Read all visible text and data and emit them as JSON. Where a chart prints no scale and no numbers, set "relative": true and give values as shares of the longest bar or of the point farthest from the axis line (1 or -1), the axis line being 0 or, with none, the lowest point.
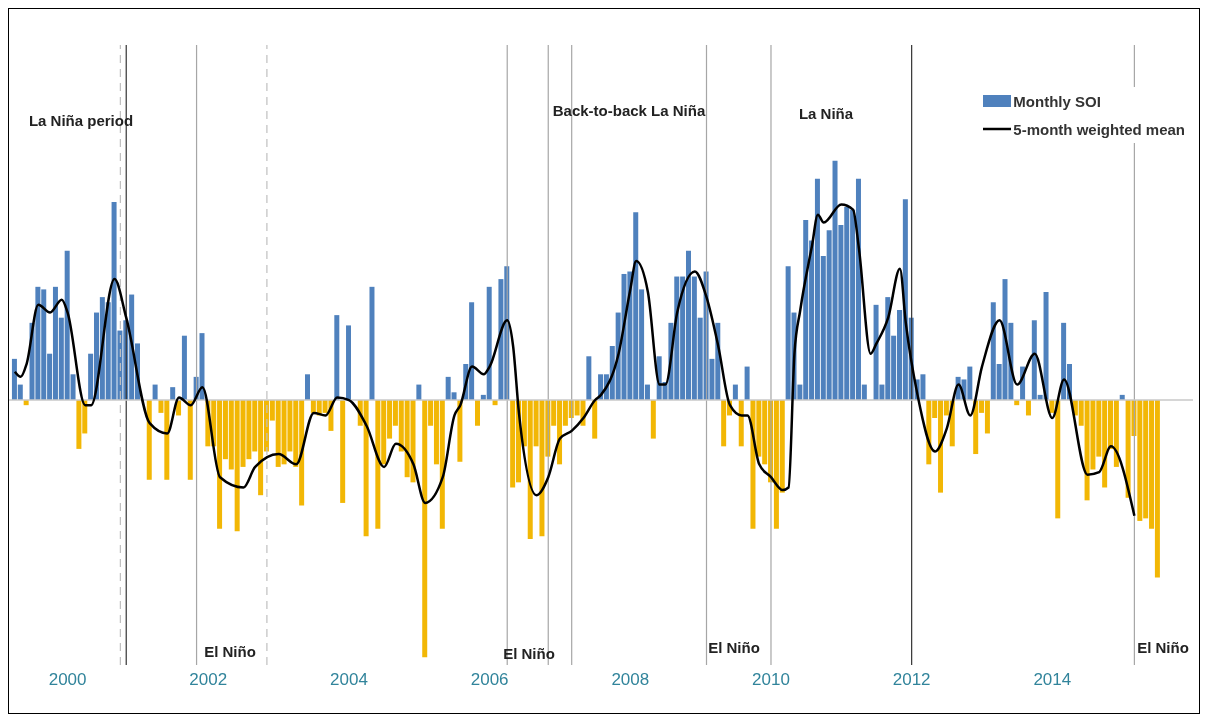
{
  "chart_data": {
    "type": "bar",
    "relative": true,
    "legend": "top right",
    "x": [
      "1999-04",
      "1999-05",
      "1999-06",
      "1999-07",
      "1999-08",
      "1999-09",
      "1999-10",
      "1999-11",
      "1999-12",
      "2000-01",
      "2000-02",
      "2000-03",
      "2000-04",
      "2000-05",
      "2000-06",
      "2000-07",
      "2000-08",
      "2000-09",
      "2000-10",
      "2000-11",
      "2000-12",
      "2001-01",
      "2001-02",
      "2001-03",
      "2001-04",
      "2001-05",
      "2001-06",
      "2001-07",
      "2001-08",
      "2001-09",
      "2001-10",
      "2001-11",
      "2001-12",
      "2002-01",
      "2002-02",
      "2002-03",
      "2002-04",
      "2002-05",
      "2002-06",
      "2002-07",
      "2002-08",
      "2002-09",
      "2002-10",
      "2002-11",
      "2002-12",
      "2003-01",
      "2003-02",
      "2003-03",
      "2003-04",
      "2003-05",
      "2003-06",
      "2003-07",
      "2003-08",
      "2003-09",
      "2003-10",
      "2003-11",
      "2003-12",
      "2004-01",
      "2004-02",
      "2004-03",
      "2004-04",
      "2004-05",
      "2004-06",
      "2004-07",
      "2004-08",
      "2004-09",
      "2004-10",
      "2004-11",
      "2004-12",
      "2005-01",
      "2005-02",
      "2005-03",
      "2005-04",
      "2005-05",
      "2005-06",
      "2005-07",
      "2005-08",
      "2005-09",
      "2005-10",
      "2005-11",
      "2005-12",
      "2006-01",
      "2006-02",
      "2006-03",
      "2006-04",
      "2006-05",
      "2006-06",
      "2006-07",
      "2006-08",
      "2006-09",
      "2006-10",
      "2006-11",
      "2006-12",
      "2007-01",
      "2007-02",
      "2007-03",
      "2007-04",
      "2007-05",
      "2007-06",
      "2007-07",
      "2007-08",
      "2007-09",
      "2007-10",
      "2007-11",
      "2007-12",
      "2008-01",
      "2008-02",
      "2008-03",
      "2008-04",
      "2008-05",
      "2008-06",
      "2008-07",
      "2008-08",
      "2008-09",
      "2008-10",
      "2008-11",
      "2008-12",
      "2009-01",
      "2009-02",
      "2009-03",
      "2009-04",
      "2009-05",
      "2009-06",
      "2009-07",
      "2009-08",
      "2009-09",
      "2009-10",
      "2009-11",
      "2009-12",
      "2010-01",
      "2010-02",
      "2010-03",
      "2010-04",
      "2010-05",
      "2010-06",
      "2010-07",
      "2010-08",
      "2010-09",
      "2010-10",
      "2010-11",
      "2010-12",
      "2011-01",
      "2011-02",
      "2011-03",
      "2011-04",
      "2011-05",
      "2011-06",
      "2011-07",
      "2011-08",
      "2011-09",
      "2011-10",
      "2011-11",
      "2011-12",
      "2012-01",
      "2012-02",
      "2012-03",
      "2012-04",
      "2012-05",
      "2012-06",
      "2012-07",
      "2012-08",
      "2012-09",
      "2012-10",
      "2012-11",
      "2012-12",
      "2013-01",
      "2013-02",
      "2013-03",
      "2013-04",
      "2013-05",
      "2013-06",
      "2013-07",
      "2013-08",
      "2013-09",
      "2013-10",
      "2013-11",
      "2013-12",
      "2014-01",
      "2014-02",
      "2014-03",
      "2014-04",
      "2014-05",
      "2014-06",
      "2014-07",
      "2014-08",
      "2014-09",
      "2014-10",
      "2014-11",
      "2014-12",
      "2015-01",
      "2015-02",
      "2015-03",
      "2015-04",
      "2015-05",
      "2015-06",
      "2015-07"
    ],
    "xlim": [
      "1999-03",
      "2016-01"
    ],
    "xticks": [
      "2000",
      "2002",
      "2004",
      "2006",
      "2008",
      "2010",
      "2012",
      "2014"
    ],
    "series": [
      {
        "name": "Monthly SOI",
        "type": "bar",
        "color": "#4f81bd",
        "values": [
          0.16,
          0.06,
          -0.02,
          0.3,
          0.44,
          0.43,
          0.18,
          0.44,
          0.32,
          0.58,
          0.1,
          -0.19,
          -0.13,
          0.18,
          0.34,
          0.4,
          0.38,
          0.77,
          0.27,
          0.31,
          0.41,
          0.22,
          null,
          -0.31,
          0.06,
          -0.05,
          -0.31,
          0.05,
          -0.06,
          0.25,
          -0.31,
          0.09,
          0.26,
          -0.18,
          -0.18,
          -0.5,
          -0.23,
          -0.27,
          -0.51,
          -0.26,
          -0.23,
          -0.2,
          -0.37,
          -0.2,
          -0.08,
          -0.26,
          -0.25,
          -0.2,
          -0.26,
          -0.41,
          0.1,
          -0.05,
          -0.06,
          -0.05,
          -0.12,
          0.33,
          -0.4,
          0.29,
          null,
          -0.1,
          -0.53,
          0.44,
          -0.5,
          -0.25,
          -0.15,
          -0.1,
          -0.2,
          -0.3,
          -0.32,
          0.06,
          -1,
          -0.1,
          -0.25,
          -0.5,
          0.09,
          0.03,
          -0.24,
          0.14,
          0.38,
          -0.1,
          0.02,
          0.44,
          -0.02,
          0.47,
          0.52,
          -0.34,
          -0.32,
          -0.18,
          -0.54,
          -0.18,
          -0.53,
          -0.22,
          -0.1,
          -0.25,
          -0.1,
          -0.07,
          -0.06,
          -0.1,
          0.17,
          -0.15,
          0.1,
          0.1,
          0.21,
          0.34,
          0.49,
          0.5,
          0.73,
          0.43,
          0.06,
          -0.15,
          0.17,
          0.07,
          0.3,
          0.48,
          0.48,
          0.58,
          0.48,
          0.32,
          0.5,
          0.16,
          0.3,
          -0.18,
          -0.06,
          0.06,
          -0.18,
          0.13,
          -0.5,
          -0.22,
          -0.25,
          -0.32,
          -0.5,
          -0.36,
          0.52,
          0.34,
          0.06,
          0.7,
          0.62,
          0.86,
          0.56,
          0.66,
          0.93,
          0.68,
          0.75,
          0.74,
          0.86,
          0.06,
          0.0,
          0.37,
          0.06,
          0.4,
          0.25,
          0.35,
          0.78,
          0.32,
          0.08,
          0.1,
          -0.25,
          -0.07,
          -0.36,
          -0.06,
          -0.18,
          0.09,
          0.08,
          0.13,
          -0.21,
          -0.05,
          -0.13,
          0.38,
          0.14,
          0.47,
          0.3,
          -0.02,
          0.13,
          -0.06,
          0.31,
          0.02,
          0.42,
          -0.05,
          -0.46,
          0.3,
          0.14,
          -0.06,
          -0.1,
          -0.39,
          -0.27,
          -0.22,
          -0.34,
          -0.19,
          -0.26,
          0.02,
          -0.38,
          -0.14,
          -0.47,
          -0.46,
          -0.5,
          -0.69
        ],
        "colors": [
          "#4f81bd",
          "#4f81bd",
          "#f2b705",
          "#4f81bd",
          "#4f81bd",
          "#4f81bd",
          "#4f81bd",
          "#4f81bd",
          "#4f81bd",
          "#4f81bd",
          "#4f81bd",
          "#f2b705",
          "#f2b705",
          "#4f81bd",
          "#4f81bd",
          "#4f81bd",
          "#4f81bd",
          "#4f81bd",
          "#4f81bd",
          "#4f81bd",
          "#4f81bd",
          "#4f81bd",
          "#f2b705",
          "#f2b705",
          "#4f81bd",
          "#f2b705",
          "#f2b705",
          "#4f81bd",
          "#f2b705",
          "#4f81bd",
          "#f2b705",
          "#4f81bd",
          "#4f81bd",
          "#f2b705",
          "#f2b705",
          "#f2b705",
          "#f2b705",
          "#f2b705",
          "#f2b705",
          "#f2b705",
          "#f2b705",
          "#f2b705",
          "#f2b705",
          "#f2b705",
          "#f2b705",
          "#f2b705",
          "#f2b705",
          "#f2b705",
          "#f2b705",
          "#f2b705",
          "#4f81bd",
          "#f2b705",
          "#f2b705",
          "#f2b705",
          "#f2b705",
          "#4f81bd",
          "#f2b705",
          "#4f81bd",
          "#f2b705",
          "#f2b705",
          "#f2b705",
          "#4f81bd",
          "#f2b705",
          "#f2b705",
          "#f2b705",
          "#f2b705",
          "#f2b705",
          "#f2b705",
          "#f2b705",
          "#4f81bd",
          "#f2b705",
          "#f2b705",
          "#f2b705",
          "#f2b705",
          "#4f81bd",
          "#4f81bd",
          "#f2b705",
          "#4f81bd",
          "#4f81bd",
          "#f2b705",
          "#4f81bd",
          "#4f81bd",
          "#f2b705",
          "#4f81bd",
          "#4f81bd",
          "#f2b705",
          "#f2b705",
          "#f2b705",
          "#f2b705",
          "#f2b705",
          "#f2b705",
          "#f2b705",
          "#f2b705",
          "#f2b705",
          "#f2b705",
          "#f2b705",
          "#f2b705",
          "#f2b705",
          "#4f81bd",
          "#f2b705",
          "#4f81bd",
          "#4f81bd",
          "#4f81bd",
          "#4f81bd",
          "#4f81bd",
          "#4f81bd",
          "#4f81bd",
          "#4f81bd",
          "#4f81bd",
          "#f2b705",
          "#4f81bd",
          "#4f81bd",
          "#4f81bd",
          "#4f81bd",
          "#4f81bd",
          "#4f81bd",
          "#4f81bd",
          "#4f81bd",
          "#4f81bd",
          "#4f81bd",
          "#4f81bd",
          "#f2b705",
          "#f2b705",
          "#4f81bd",
          "#f2b705",
          "#4f81bd",
          "#f2b705",
          "#f2b705",
          "#f2b705",
          "#f2b705",
          "#f2b705",
          "#f2b705",
          "#4f81bd",
          "#4f81bd",
          "#4f81bd",
          "#4f81bd",
          "#4f81bd",
          "#4f81bd",
          "#4f81bd",
          "#4f81bd",
          "#4f81bd",
          "#4f81bd",
          "#4f81bd",
          "#4f81bd",
          "#4f81bd",
          "#4f81bd",
          "#4f81bd",
          "#4f81bd",
          "#4f81bd",
          "#4f81bd",
          "#4f81bd",
          "#4f81bd",
          "#4f81bd",
          "#4f81bd",
          "#4f81bd",
          "#4f81bd",
          "#f2b705",
          "#f2b705",
          "#f2b705",
          "#f2b705",
          "#f2b705",
          "#4f81bd",
          "#4f81bd",
          "#4f81bd",
          "#f2b705",
          "#f2b705",
          "#f2b705",
          "#4f81bd",
          "#4f81bd",
          "#4f81bd",
          "#4f81bd",
          "#f2b705",
          "#4f81bd",
          "#f2b705",
          "#4f81bd",
          "#4f81bd",
          "#4f81bd",
          "#f2b705",
          "#f2b705",
          "#4f81bd",
          "#4f81bd",
          "#f2b705",
          "#f2b705",
          "#f2b705",
          "#f2b705",
          "#f2b705",
          "#f2b705",
          "#f2b705",
          "#f2b705",
          "#4f81bd",
          "#f2b705",
          "#f2b705",
          "#f2b705",
          "#f2b705",
          "#f2b705",
          "#f2b705"
        ]
      },
      {
        "name": "5-month weighted mean",
        "type": "line",
        "color": "#000000",
        "x": [
          "1999-04",
          "1999-05",
          "1999-06",
          "1999-08",
          "1999-10",
          "1999-12",
          "2000-01",
          "2000-04",
          "2000-05",
          "2000-09",
          "2000-11",
          "2001-03",
          "2001-06",
          "2001-08",
          "2001-10",
          "2001-12",
          "2002-03",
          "2002-07",
          "2002-09",
          "2003-01",
          "2003-04",
          "2003-07",
          "2003-09",
          "2003-11",
          "2004-01",
          "2004-04",
          "2004-07",
          "2004-09",
          "2004-12",
          "2005-02",
          "2005-05",
          "2005-07",
          "2005-08",
          "2005-10",
          "2005-12",
          "2006-01",
          "2006-04",
          "2006-05",
          "2006-06",
          "2006-09",
          "2006-11",
          "2007-01",
          "2007-03",
          "2007-05",
          "2007-07",
          "2007-08",
          "2007-11",
          "2008-01",
          "2008-02",
          "2008-04",
          "2008-06",
          "2008-07",
          "2008-09",
          "2008-12",
          "2009-02",
          "2009-04",
          "2009-06",
          "2009-08",
          "2009-09",
          "2009-11",
          "2010-01",
          "2010-03",
          "2010-04",
          "2010-05",
          "2010-06",
          "2010-08",
          "2010-09",
          "2010-10",
          "2011-01",
          "2011-03",
          "2011-04",
          "2011-06",
          "2011-07",
          "2011-09",
          "2011-11",
          "2011-12",
          "2012-02",
          "2012-05",
          "2012-07",
          "2012-09",
          "2012-11",
          "2013-01",
          "2013-04",
          "2013-07",
          "2013-10",
          "2014-01",
          "2014-03",
          "2014-07",
          "2014-09",
          "2014-11",
          "2015-03"
        ],
        "values": [
          0.11,
          0.09,
          0.14,
          0.37,
          0.34,
          0.39,
          0.34,
          -0.02,
          -0.02,
          0.47,
          0.32,
          -0.09,
          -0.13,
          0.01,
          -0.02,
          0.05,
          -0.3,
          -0.34,
          -0.26,
          -0.21,
          -0.25,
          -0.05,
          -0.06,
          0.01,
          0,
          -0.1,
          -0.26,
          -0.17,
          -0.25,
          -0.4,
          -0.3,
          -0.06,
          -0.02,
          0.13,
          0.1,
          0.13,
          0.31,
          0.21,
          -0.05,
          -0.37,
          -0.3,
          -0.15,
          -0.12,
          -0.07,
          0,
          0.02,
          0.18,
          0.43,
          0.54,
          0.42,
          0.06,
          0.06,
          0.34,
          0.5,
          0.4,
          0.21,
          -0.02,
          -0.06,
          -0.06,
          -0.25,
          -0.3,
          -0.35,
          -0.34,
          0.18,
          0.35,
          0.6,
          0.72,
          0.69,
          0.76,
          0.74,
          0.59,
          0.18,
          0.22,
          0.32,
          0.51,
          0.3,
          0.02,
          -0.2,
          -0.11,
          0.06,
          -0.06,
          0.13,
          0.31,
          0.06,
          0.18,
          -0.07,
          0.08,
          -0.29,
          -0.28,
          -0.18,
          -0.45
        ]
      }
    ],
    "ref_lines": [
      {
        "axis": "x",
        "value": "2000-10",
        "color": "#bfbfbf",
        "line_style": "dashed"
      },
      {
        "axis": "x",
        "value": "2000-11",
        "color": "#333333",
        "line_style": "solid"
      },
      {
        "axis": "x",
        "value": "2001-11",
        "color": "#a6a6a6",
        "line_style": "solid"
      },
      {
        "axis": "x",
        "value": "2002-11",
        "color": "#bfbfbf",
        "line_style": "dashed"
      },
      {
        "axis": "x",
        "value": "2006-04",
        "color": "#a6a6a6",
        "line_style": "solid"
      },
      {
        "axis": "x",
        "value": "2006-11",
        "color": "#a6a6a6",
        "line_style": "solid"
      },
      {
        "axis": "x",
        "value": "2007-03",
        "color": "#a6a6a6",
        "line_style": "solid"
      },
      {
        "axis": "x",
        "value": "2009-02",
        "color": "#a6a6a6",
        "line_style": "solid"
      },
      {
        "axis": "x",
        "value": "2010-01",
        "color": "#a6a6a6",
        "line_style": "solid"
      },
      {
        "axis": "x",
        "value": "2012-01",
        "color": "#333333",
        "line_style": "solid"
      },
      {
        "axis": "x",
        "value": "2015-03",
        "color": "#a6a6a6",
        "line_style": "solid"
      }
    ],
    "annotations": [
      "La Niña period",
      "Back-to-back La Niña",
      "La Niña",
      "El Niño",
      "El Niño",
      "El Niño",
      "El Niño"
    ]
  }
}
